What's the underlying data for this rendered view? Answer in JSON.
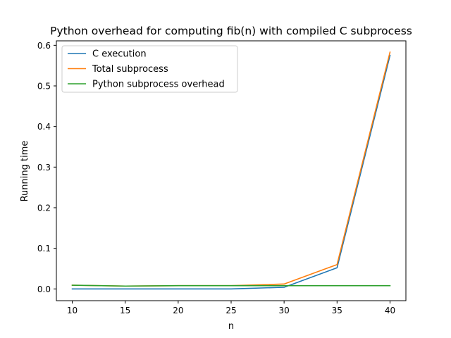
{
  "chart_data": {
    "type": "line",
    "title": "Python overhead for computing fib(n) with compiled C subprocess",
    "xlabel": "n",
    "ylabel": "Running time",
    "x": [
      10,
      15,
      20,
      25,
      30,
      35,
      40
    ],
    "xticks": [
      10,
      15,
      20,
      25,
      30,
      35,
      40
    ],
    "xtick_labels": [
      "10",
      "15",
      "20",
      "25",
      "30",
      "35",
      "40"
    ],
    "yticks": [
      0.0,
      0.1,
      0.2,
      0.3,
      0.4,
      0.5,
      0.6
    ],
    "ytick_labels": [
      "0.0",
      "0.1",
      "0.2",
      "0.3",
      "0.4",
      "0.5",
      "0.6"
    ],
    "xlim": [
      8.5,
      41.5
    ],
    "ylim": [
      -0.029,
      0.611
    ],
    "grid": false,
    "legend_position": "top-left",
    "series": [
      {
        "name": "C execution",
        "color": "#1f77b4",
        "values": [
          0.0,
          0.0,
          0.0,
          0.0,
          0.004,
          0.052,
          0.575
        ]
      },
      {
        "name": "Total subprocess",
        "color": "#ff7f0e",
        "values": [
          0.009,
          0.007,
          0.008,
          0.008,
          0.012,
          0.06,
          0.583
        ]
      },
      {
        "name": "Python subprocess overhead",
        "color": "#2ca02c",
        "values": [
          0.009,
          0.007,
          0.008,
          0.008,
          0.008,
          0.008,
          0.008
        ]
      }
    ]
  }
}
